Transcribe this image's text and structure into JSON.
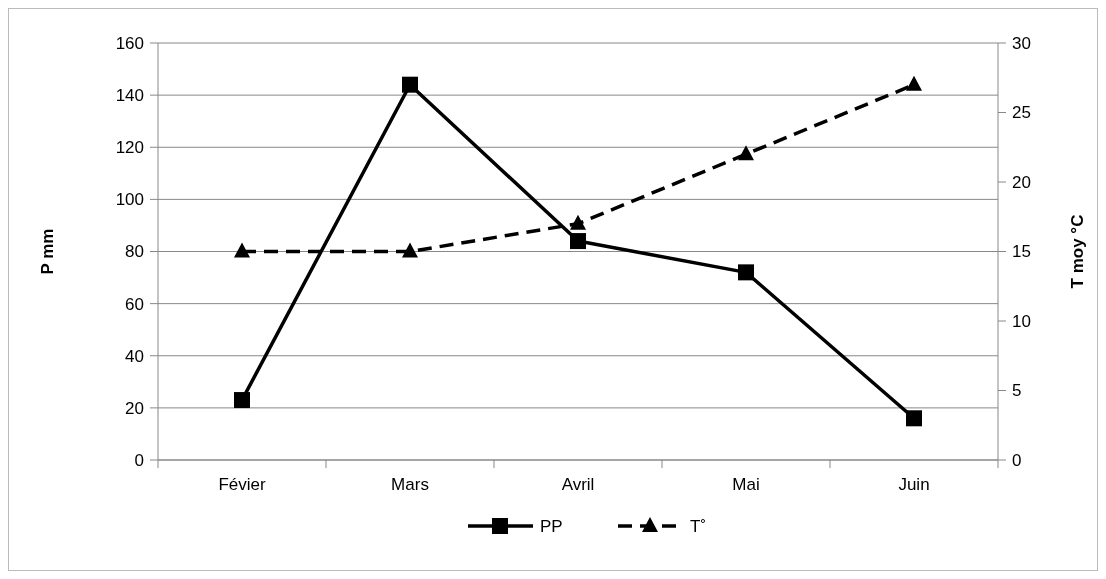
{
  "chart_data": {
    "type": "line",
    "categories": [
      "Févier",
      "Mars",
      "Avril",
      "Mai",
      "Juin"
    ],
    "series": [
      {
        "name": "PP",
        "color": "#000000",
        "values": [
          23,
          144,
          84,
          72,
          16
        ],
        "marker": "square",
        "line_style": "solid"
      },
      {
        "name": "T˚",
        "color": "#000000",
        "values": [
          15,
          15,
          17,
          22,
          27
        ],
        "marker": "triangle",
        "line_style": "dashed",
        "axis": "y2"
      }
    ],
    "ylabel": "P mm",
    "y2label": "T moy °C",
    "ylim": [
      0,
      160
    ],
    "yticks": [
      0,
      20,
      40,
      60,
      80,
      100,
      120,
      140,
      160
    ],
    "y2lim": [
      0,
      30
    ],
    "y2ticks": [
      0,
      5,
      10,
      15,
      20,
      25,
      30
    ],
    "grid": "y",
    "legend": "bottom"
  }
}
